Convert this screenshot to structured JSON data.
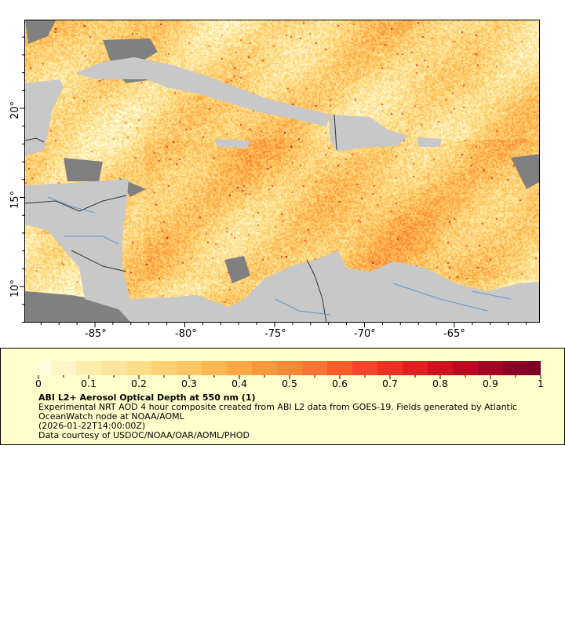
{
  "map": {
    "lon_range": [
      -88.9,
      -60.2
    ],
    "lat_range": [
      8.0,
      25.0
    ],
    "lon_ticks": [
      "-85°",
      "-80°",
      "-75°",
      "-70°",
      "-65°"
    ],
    "lat_ticks": [
      "20°",
      "15°",
      "10°"
    ],
    "land_color": "#c8c8c8",
    "cloud_color": "#808080",
    "border_color": "#333333",
    "river_color": "#6699cc"
  },
  "legend": {
    "colorbar_ticks": [
      "0",
      "0.1",
      "0.2",
      "0.3",
      "0.4",
      "0.5",
      "0.6",
      "0.7",
      "0.8",
      "0.9",
      "1"
    ],
    "colormap": [
      "#ffffe0",
      "#fff5c8",
      "#ffedb0",
      "#fee59c",
      "#fedd88",
      "#fed274",
      "#fec662",
      "#feb852",
      "#fea846",
      "#fd983e",
      "#fd8838",
      "#fc7532",
      "#fb5e2c",
      "#f34628",
      "#e83224",
      "#dc2120",
      "#cc141f",
      "#b90a22",
      "#a30424",
      "#8a0026",
      "#7a0026"
    ],
    "title": "ABI L2+ Aerosol Optical Depth at 550 nm (1)",
    "line1": "Experimental NRT AOD 4 hour composite created from ABI L2 data from GOES-19. Fields generated by Atlantic",
    "line2": "OceanWatch node at NOAA/AOML",
    "line3": "(2026-01-22T14:00:00Z)",
    "line4": "Data courtesy of USDOC/NOAA/OAR/AOML/PHOD"
  }
}
